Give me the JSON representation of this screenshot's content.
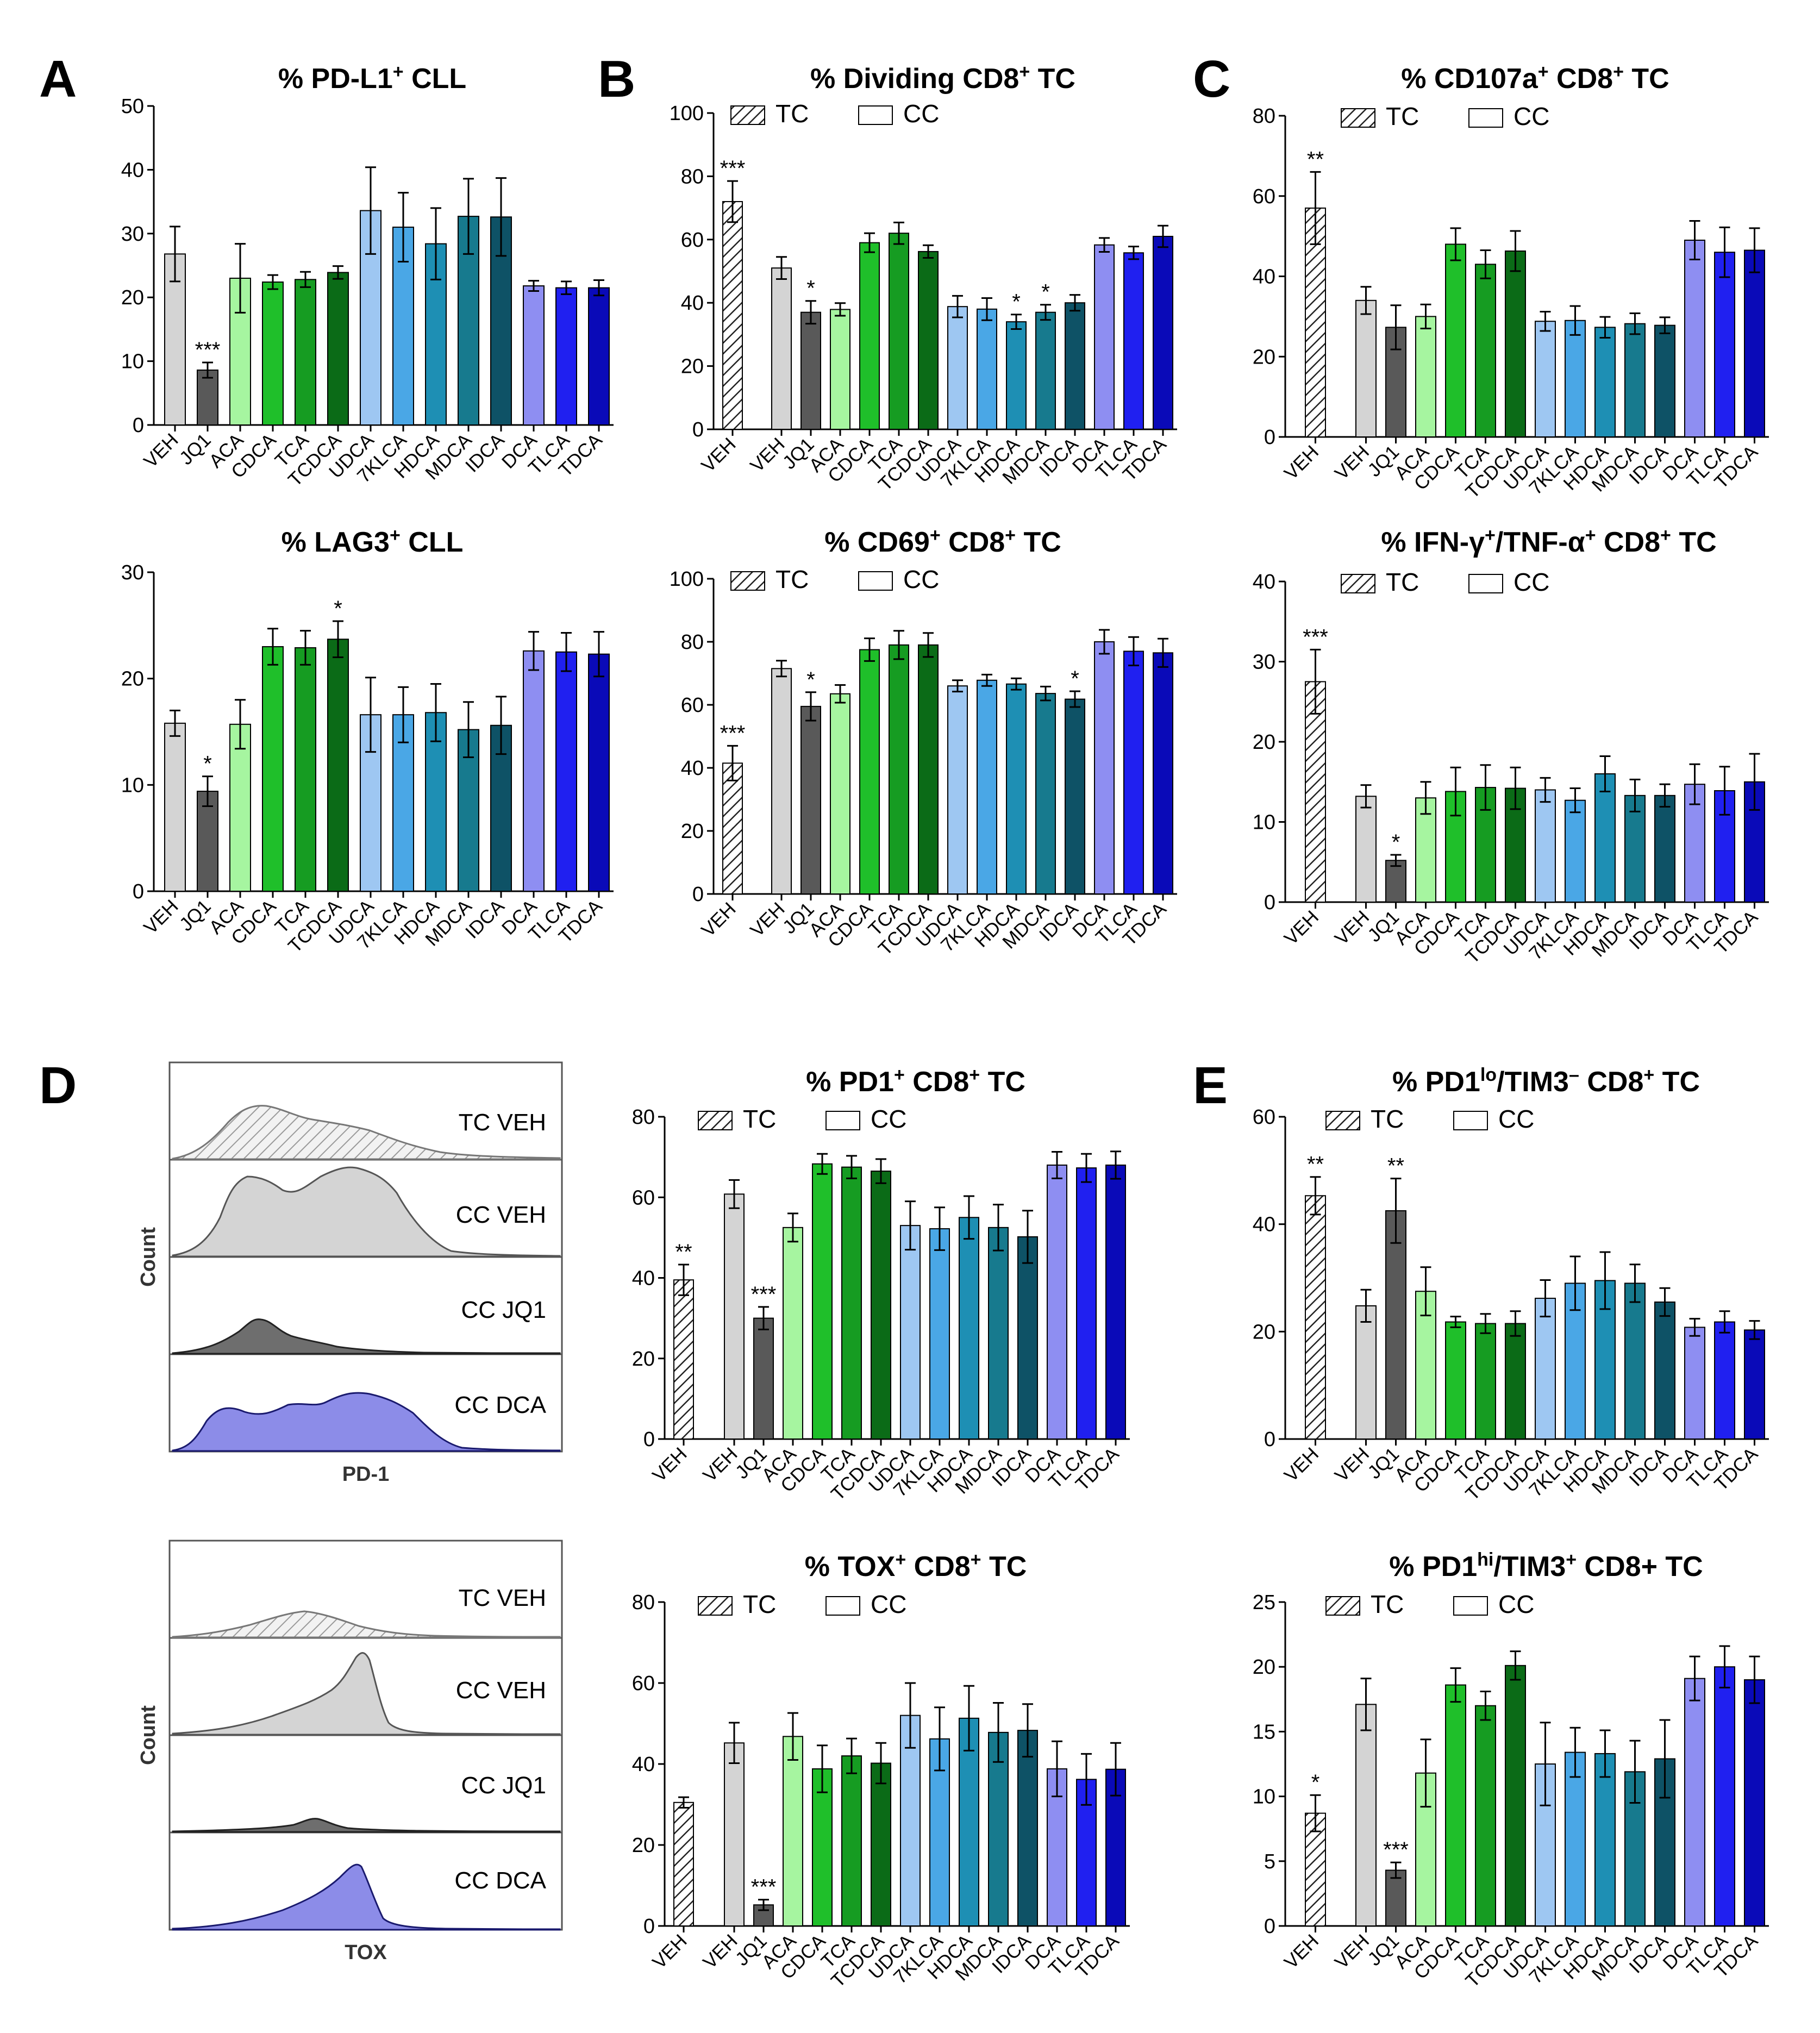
{
  "figure": {
    "panel_letters": [
      "A",
      "B",
      "C",
      "D",
      "E"
    ],
    "legend_labels": {
      "tc": "TC",
      "cc": "CC"
    }
  },
  "colors": {
    "VEH_TC": "#ffffff",
    "VEH": "#d4d4d4",
    "JQ1": "#595959",
    "ACA": "#a6f5a0",
    "CDCA": "#1fbf2a",
    "TCA": "#169c22",
    "TCDCA": "#0b6b17",
    "UDCA": "#9ec7f2",
    "7KLCA": "#4aa7e6",
    "HDCA": "#1e8fb4",
    "MDCA": "#177a8e",
    "IDCA": "#0e5266",
    "DCA": "#8e8ef2",
    "TLCA": "#2020f0",
    "TDCA": "#0a0ab8",
    "hist_tc_veh": "#d9d9d9",
    "hist_cc_veh": "#d4d4d4",
    "hist_cc_jq1": "#6e6e6e",
    "hist_cc_dca": "#8c8ce8"
  },
  "histograms": {
    "pd1": {
      "axis_label": "PD-1",
      "count_label": "Count",
      "rows": [
        "TC VEH",
        "CC VEH",
        "CC JQ1",
        "CC DCA"
      ]
    },
    "tox": {
      "axis_label": "TOX",
      "count_label": "Count",
      "rows": [
        "TC VEH",
        "CC VEH",
        "CC JQ1",
        "CC DCA"
      ]
    }
  },
  "chart_data": [
    {
      "id": "A_pdl1",
      "type": "bar",
      "title": "% PD-L1⁺ CLL",
      "categories": [
        "VEH",
        "JQ1",
        "ACA",
        "CDCA",
        "TCA",
        "TCDCA",
        "UDCA",
        "7KLCA",
        "HDCA",
        "MDCA",
        "IDCA",
        "DCA",
        "TLCA",
        "TDCA"
      ],
      "values": [
        26.8,
        8.6,
        23.0,
        22.4,
        22.8,
        23.9,
        33.6,
        31.0,
        28.4,
        32.7,
        32.6,
        21.8,
        21.5,
        21.5
      ],
      "errors": [
        4.3,
        1.2,
        5.4,
        1.1,
        1.2,
        1.0,
        6.8,
        5.4,
        5.6,
        5.9,
        6.1,
        0.8,
        1.0,
        1.2
      ],
      "significance": [
        "",
        "***",
        "",
        "",
        "",
        "",
        "",
        "",
        "",
        "",
        "",
        "",
        "",
        ""
      ],
      "ylim": [
        0,
        50
      ],
      "yticks": [
        0,
        10,
        20,
        30,
        40,
        50
      ],
      "has_tc": false
    },
    {
      "id": "A_lag3",
      "type": "bar",
      "title": "% LAG3⁺ CLL",
      "categories": [
        "VEH",
        "JQ1",
        "ACA",
        "CDCA",
        "TCA",
        "TCDCA",
        "UDCA",
        "7KLCA",
        "HDCA",
        "MDCA",
        "IDCA",
        "DCA",
        "TLCA",
        "TDCA"
      ],
      "values": [
        15.8,
        9.4,
        15.7,
        23.0,
        22.9,
        23.7,
        16.6,
        16.6,
        16.8,
        15.2,
        15.6,
        22.6,
        22.5,
        22.3
      ],
      "errors": [
        1.2,
        1.4,
        2.3,
        1.7,
        1.6,
        1.7,
        3.5,
        2.6,
        2.7,
        2.6,
        2.7,
        1.8,
        1.8,
        2.1
      ],
      "significance": [
        "",
        "*",
        "",
        "",
        "",
        "*",
        "",
        "",
        "",
        "",
        "",
        "",
        "",
        ""
      ],
      "ylim": [
        0,
        30
      ],
      "yticks": [
        0,
        10,
        20,
        30
      ],
      "has_tc": false
    },
    {
      "id": "B_dividing",
      "type": "bar",
      "title": "% Dividing CD8⁺ TC",
      "categories": [
        "VEH",
        "JQ1",
        "ACA",
        "CDCA",
        "TCA",
        "TCDCA",
        "UDCA",
        "7KLCA",
        "HDCA",
        "MDCA",
        "IDCA",
        "DCA",
        "TLCA",
        "TDCA"
      ],
      "tc_value": 72.0,
      "tc_error": 6.5,
      "tc_sig": "***",
      "tc_label": "VEH",
      "values": [
        51.0,
        37.0,
        37.9,
        59.0,
        62.0,
        56.2,
        38.8,
        38.0,
        34.0,
        37.0,
        40.0,
        58.3,
        55.8,
        61.0
      ],
      "errors": [
        3.5,
        3.6,
        2.0,
        3.0,
        3.4,
        2.0,
        3.4,
        3.5,
        2.3,
        2.4,
        2.5,
        2.2,
        2.0,
        3.4
      ],
      "significance": [
        "",
        "*",
        "",
        "",
        "",
        "",
        "",
        "",
        "*",
        "*",
        "",
        "",
        "",
        ""
      ],
      "ylim": [
        0,
        100
      ],
      "yticks": [
        0,
        20,
        40,
        60,
        80,
        100
      ],
      "has_tc": true
    },
    {
      "id": "B_cd69",
      "type": "bar",
      "title": "% CD69⁺ CD8⁺ TC",
      "categories": [
        "VEH",
        "JQ1",
        "ACA",
        "CDCA",
        "TCA",
        "TCDCA",
        "UDCA",
        "7KLCA",
        "HDCA",
        "MDCA",
        "IDCA",
        "DCA",
        "TLCA",
        "TDCA"
      ],
      "tc_value": 41.5,
      "tc_error": 5.5,
      "tc_sig": "***",
      "tc_label": "VEH",
      "values": [
        71.5,
        59.5,
        63.5,
        77.5,
        79.0,
        79.0,
        66.0,
        67.8,
        66.6,
        63.6,
        61.8,
        80.0,
        77.0,
        76.5
      ],
      "errors": [
        2.5,
        4.5,
        2.8,
        3.6,
        4.5,
        3.8,
        1.8,
        1.8,
        1.8,
        2.2,
        2.5,
        3.8,
        4.5,
        4.5
      ],
      "significance": [
        "",
        "*",
        "",
        "",
        "",
        "",
        "",
        "",
        "",
        "",
        "*",
        "",
        "",
        ""
      ],
      "ylim": [
        0,
        100
      ],
      "yticks": [
        0,
        20,
        40,
        60,
        80,
        100
      ],
      "has_tc": true
    },
    {
      "id": "C_cd107a",
      "type": "bar",
      "title": "% CD107a⁺ CD8⁺ TC",
      "categories": [
        "VEH",
        "JQ1",
        "ACA",
        "CDCA",
        "TCA",
        "TCDCA",
        "UDCA",
        "7KLCA",
        "HDCA",
        "MDCA",
        "IDCA",
        "DCA",
        "TLCA",
        "TDCA"
      ],
      "tc_value": 57.0,
      "tc_error": 9.0,
      "tc_sig": "**",
      "tc_label": "VEH",
      "values": [
        34.0,
        27.3,
        30.0,
        48.0,
        43.0,
        46.3,
        28.8,
        29.0,
        27.3,
        28.2,
        27.8,
        49.0,
        46.0,
        46.5
      ],
      "errors": [
        3.4,
        5.5,
        3.0,
        4.0,
        3.5,
        5.0,
        2.4,
        3.6,
        2.6,
        2.6,
        2.0,
        4.8,
        6.2,
        5.5
      ],
      "significance": [
        "",
        "",
        "",
        "",
        "",
        "",
        "",
        "",
        "",
        "",
        "",
        "",
        "",
        ""
      ],
      "ylim": [
        0,
        80
      ],
      "yticks": [
        0,
        20,
        40,
        60,
        80
      ],
      "has_tc": true
    },
    {
      "id": "C_ifng",
      "type": "bar",
      "title": "% IFN-γ⁺/TNF-α⁺ CD8⁺ TC",
      "categories": [
        "VEH",
        "JQ1",
        "ACA",
        "CDCA",
        "TCA",
        "TCDCA",
        "UDCA",
        "7KLCA",
        "HDCA",
        "MDCA",
        "IDCA",
        "DCA",
        "TLCA",
        "TDCA"
      ],
      "tc_value": 27.5,
      "tc_error": 4.0,
      "tc_sig": "***",
      "tc_label": "VEH",
      "values": [
        13.2,
        5.2,
        13.0,
        13.8,
        14.3,
        14.2,
        14.0,
        12.7,
        16.0,
        13.3,
        13.3,
        14.7,
        13.9,
        15.0
      ],
      "errors": [
        1.4,
        0.7,
        2.0,
        3.0,
        2.8,
        2.6,
        1.5,
        1.5,
        2.2,
        2.0,
        1.4,
        2.5,
        3.0,
        3.5
      ],
      "significance": [
        "",
        "*",
        "",
        "",
        "",
        "",
        "",
        "",
        "",
        "",
        "",
        "",
        "",
        ""
      ],
      "ylim": [
        0,
        40
      ],
      "yticks": [
        0,
        10,
        20,
        30,
        40
      ],
      "has_tc": true
    },
    {
      "id": "D_pd1",
      "type": "bar",
      "title": "% PD1⁺ CD8⁺ TC",
      "categories": [
        "VEH",
        "JQ1",
        "ACA",
        "CDCA",
        "TCA",
        "TCDCA",
        "UDCA",
        "7KLCA",
        "HDCA",
        "MDCA",
        "IDCA",
        "DCA",
        "TLCA",
        "TDCA"
      ],
      "tc_value": 39.5,
      "tc_error": 3.8,
      "tc_sig": "**",
      "tc_label": "VEH",
      "values": [
        60.8,
        30.0,
        52.5,
        68.3,
        67.5,
        66.5,
        53.0,
        52.2,
        55.0,
        52.5,
        50.2,
        68.0,
        67.3,
        68.0
      ],
      "errors": [
        3.5,
        2.8,
        3.5,
        2.5,
        2.8,
        3.0,
        6.0,
        5.3,
        5.3,
        5.7,
        6.5,
        3.3,
        3.5,
        3.4
      ],
      "significance": [
        "",
        "***",
        "",
        "",
        "",
        "",
        "",
        "",
        "",
        "",
        "",
        "",
        "",
        ""
      ],
      "ylim": [
        0,
        80
      ],
      "yticks": [
        0,
        20,
        40,
        60,
        80
      ],
      "has_tc": true
    },
    {
      "id": "D_tox",
      "type": "bar",
      "title": "% TOX⁺ CD8⁺ TC",
      "categories": [
        "VEH",
        "JQ1",
        "ACA",
        "CDCA",
        "TCA",
        "TCDCA",
        "UDCA",
        "7KLCA",
        "HDCA",
        "MDCA",
        "IDCA",
        "DCA",
        "TLCA",
        "TDCA"
      ],
      "tc_value": 30.5,
      "tc_error": 1.3,
      "tc_sig": "",
      "tc_label": "VEH",
      "values": [
        45.2,
        5.2,
        46.8,
        38.8,
        42.0,
        40.2,
        52.0,
        46.2,
        51.3,
        47.8,
        48.3,
        38.8,
        36.2,
        38.7
      ],
      "errors": [
        5.0,
        1.3,
        5.8,
        5.8,
        4.3,
        5.0,
        8.0,
        7.8,
        8.0,
        7.3,
        6.5,
        6.8,
        6.3,
        6.5
      ],
      "significance": [
        "",
        "***",
        "",
        "",
        "",
        "",
        "",
        "",
        "",
        "",
        "",
        "",
        "",
        ""
      ],
      "ylim": [
        0,
        80
      ],
      "yticks": [
        0,
        20,
        40,
        60,
        80
      ],
      "has_tc": true
    },
    {
      "id": "E_pd1lo",
      "type": "bar",
      "title": "% PD1ˡᵒ/TIM3⁻ CD8⁺ TC",
      "categories": [
        "VEH",
        "JQ1",
        "ACA",
        "CDCA",
        "TCA",
        "TCDCA",
        "UDCA",
        "7KLCA",
        "HDCA",
        "MDCA",
        "IDCA",
        "DCA",
        "TLCA",
        "TDCA"
      ],
      "tc_value": 45.3,
      "tc_error": 3.5,
      "tc_sig": "**",
      "tc_label": "VEH",
      "values": [
        24.8,
        42.5,
        27.5,
        21.8,
        21.5,
        21.5,
        26.2,
        29.0,
        29.5,
        29.0,
        25.5,
        20.8,
        21.8,
        20.3
      ],
      "errors": [
        3.0,
        6.0,
        4.5,
        1.0,
        1.8,
        2.3,
        3.4,
        5.0,
        5.3,
        3.5,
        2.6,
        1.6,
        2.0,
        1.7
      ],
      "significance": [
        "",
        "**",
        "",
        "",
        "",
        "",
        "",
        "",
        "",
        "",
        "",
        "",
        "",
        ""
      ],
      "ylim": [
        0,
        60
      ],
      "yticks": [
        0,
        20,
        40,
        60
      ],
      "has_tc": true
    },
    {
      "id": "E_pd1hi",
      "type": "bar",
      "title": "% PD1ʰⁱ/TIM3⁺ CD8+ TC",
      "categories": [
        "VEH",
        "JQ1",
        "ACA",
        "CDCA",
        "TCA",
        "TCDCA",
        "UDCA",
        "7KLCA",
        "HDCA",
        "MDCA",
        "IDCA",
        "DCA",
        "TLCA",
        "TDCA"
      ],
      "tc_value": 8.7,
      "tc_error": 1.4,
      "tc_sig": "*",
      "tc_label": "VEH",
      "values": [
        17.1,
        4.3,
        11.8,
        18.6,
        17.0,
        20.1,
        12.5,
        13.4,
        13.3,
        11.9,
        12.9,
        19.1,
        20.0,
        19.0
      ],
      "errors": [
        2.0,
        0.6,
        2.6,
        1.3,
        1.1,
        1.1,
        3.2,
        1.9,
        1.8,
        2.4,
        3.0,
        1.7,
        1.6,
        1.8
      ],
      "significance": [
        "",
        "***",
        "",
        "",
        "",
        "",
        "",
        "",
        "",
        "",
        "",
        "",
        "",
        ""
      ],
      "ylim": [
        0,
        25
      ],
      "yticks": [
        0,
        5,
        10,
        15,
        20,
        25
      ],
      "has_tc": true
    }
  ]
}
